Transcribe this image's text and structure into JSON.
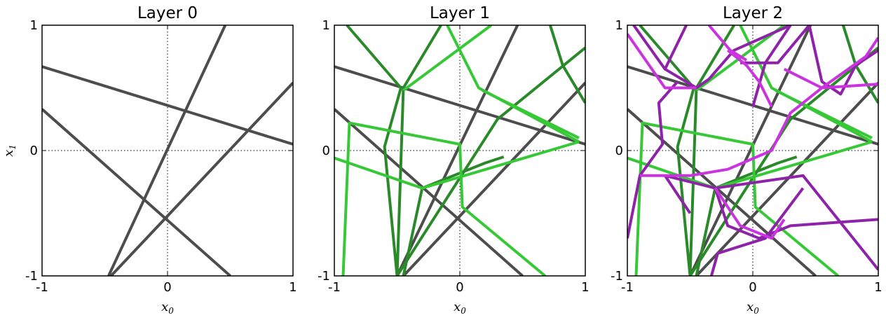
{
  "chart_data": [
    {
      "type": "line",
      "title": "Layer 0",
      "xlabel": "x0",
      "ylabel": "x1",
      "xlim": [
        -1,
        1
      ],
      "ylim": [
        -1,
        1
      ],
      "xticks": [
        "-1",
        "0",
        "1"
      ],
      "yticks": [
        "-1",
        "0",
        "1"
      ],
      "grid": "dotted lines at x0=0 and x1=0",
      "series": [
        {
          "color": "#4d4d4d",
          "points": [
            [
              -1,
              0.67
            ],
            [
              1,
              0.05
            ]
          ]
        },
        {
          "color": "#4d4d4d",
          "points": [
            [
              -1,
              0.33
            ],
            [
              0.5,
              -1
            ]
          ]
        },
        {
          "color": "#4d4d4d",
          "points": [
            [
              -0.47,
              -1
            ],
            [
              0.46,
              1
            ]
          ]
        },
        {
          "color": "#4d4d4d",
          "points": [
            [
              -0.45,
              -1
            ],
            [
              1,
              0.54
            ]
          ]
        }
      ]
    },
    {
      "type": "line",
      "title": "Layer 1",
      "xlabel": "x0",
      "ylabel": "",
      "xlim": [
        -1,
        1
      ],
      "ylim": [
        -1,
        1
      ],
      "xticks": [
        "-1",
        "0",
        "1"
      ],
      "yticks": [
        "-1",
        "0",
        "1"
      ],
      "grid": "dotted lines at x0=0 and x1=0",
      "series": [
        {
          "color": "#4d4d4d",
          "points": [
            [
              -1,
              0.67
            ],
            [
              1,
              0.05
            ]
          ]
        },
        {
          "color": "#4d4d4d",
          "points": [
            [
              -1,
              0.33
            ],
            [
              0.5,
              -1
            ]
          ]
        },
        {
          "color": "#4d4d4d",
          "points": [
            [
              -0.5,
              -1
            ],
            [
              0.46,
              1
            ]
          ]
        },
        {
          "color": "#4d4d4d",
          "points": [
            [
              -0.45,
              -1
            ],
            [
              1,
              0.54
            ]
          ]
        },
        {
          "color": "#2a8a2a",
          "points": [
            [
              -0.9,
              1
            ],
            [
              -0.47,
              0.5
            ],
            [
              -0.6,
              0.03
            ],
            [
              -0.5,
              -1
            ]
          ]
        },
        {
          "color": "#2a8a2a",
          "points": [
            [
              -0.5,
              -1
            ],
            [
              -0.45,
              0.5
            ],
            [
              -0.15,
              1
            ]
          ]
        },
        {
          "color": "#2a8a2a",
          "points": [
            [
              -0.5,
              -1
            ],
            [
              0.3,
              0.25
            ],
            [
              1,
              0.82
            ]
          ]
        },
        {
          "color": "#2a8a2a",
          "points": [
            [
              0.72,
              1
            ],
            [
              0.82,
              0.68
            ],
            [
              1,
              0.38
            ]
          ]
        },
        {
          "color": "#2a8a2a",
          "points": [
            [
              -0.45,
              -1
            ],
            [
              -0.3,
              -0.3
            ],
            [
              0.2,
              -0.1
            ],
            [
              0.35,
              -0.05
            ]
          ]
        },
        {
          "color": "#36c836",
          "points": [
            [
              -0.45,
              0.48
            ],
            [
              0.25,
              1
            ]
          ]
        },
        {
          "color": "#36c836",
          "points": [
            [
              -0.1,
              1
            ],
            [
              0.15,
              0.5
            ],
            [
              0.95,
              0.07
            ]
          ]
        },
        {
          "color": "#36c836",
          "points": [
            [
              -1,
              -0.06
            ],
            [
              -0.3,
              -0.3
            ],
            [
              0.95,
              0.07
            ]
          ]
        },
        {
          "color": "#36c836",
          "points": [
            [
              -0.93,
              -1
            ],
            [
              -0.88,
              0.22
            ],
            [
              0,
              0.05
            ],
            [
              0.02,
              -0.45
            ],
            [
              0.68,
              -1
            ]
          ]
        },
        {
          "color": "#36c836",
          "points": [
            [
              0.18,
              0.48
            ],
            [
              0.95,
              0.1
            ]
          ]
        }
      ]
    },
    {
      "type": "line",
      "title": "Layer 2",
      "xlabel": "x0",
      "ylabel": "",
      "xlim": [
        -1,
        1
      ],
      "ylim": [
        -1,
        1
      ],
      "xticks": [
        "-1",
        "0",
        "1"
      ],
      "yticks": [
        "-1",
        "0",
        "1"
      ],
      "grid": "dotted lines at x0=0 and x1=0",
      "series": [
        {
          "color": "#4d4d4d",
          "points": [
            [
              -1,
              0.67
            ],
            [
              1,
              0.05
            ]
          ]
        },
        {
          "color": "#4d4d4d",
          "points": [
            [
              -1,
              0.33
            ],
            [
              0.5,
              -1
            ]
          ]
        },
        {
          "color": "#4d4d4d",
          "points": [
            [
              -0.5,
              -1
            ],
            [
              0.46,
              1
            ]
          ]
        },
        {
          "color": "#4d4d4d",
          "points": [
            [
              -0.45,
              -1
            ],
            [
              1,
              0.54
            ]
          ]
        },
        {
          "color": "#2a8a2a",
          "points": [
            [
              -0.9,
              1
            ],
            [
              -0.47,
              0.5
            ],
            [
              -0.6,
              0.03
            ],
            [
              -0.5,
              -1
            ]
          ]
        },
        {
          "color": "#2a8a2a",
          "points": [
            [
              -0.5,
              -1
            ],
            [
              -0.45,
              0.5
            ],
            [
              -0.15,
              1
            ]
          ]
        },
        {
          "color": "#2a8a2a",
          "points": [
            [
              -0.5,
              -1
            ],
            [
              0.3,
              0.25
            ],
            [
              1,
              0.82
            ]
          ]
        },
        {
          "color": "#2a8a2a",
          "points": [
            [
              0.72,
              1
            ],
            [
              0.82,
              0.68
            ],
            [
              1,
              0.38
            ]
          ]
        },
        {
          "color": "#2a8a2a",
          "points": [
            [
              -0.45,
              -1
            ],
            [
              -0.3,
              -0.3
            ],
            [
              0.2,
              -0.1
            ],
            [
              0.35,
              -0.05
            ]
          ]
        },
        {
          "color": "#36c836",
          "points": [
            [
              -0.45,
              0.48
            ],
            [
              0.25,
              1
            ]
          ]
        },
        {
          "color": "#36c836",
          "points": [
            [
              -0.1,
              1
            ],
            [
              0.15,
              0.5
            ],
            [
              0.95,
              0.07
            ]
          ]
        },
        {
          "color": "#36c836",
          "points": [
            [
              -1,
              -0.06
            ],
            [
              -0.3,
              -0.3
            ],
            [
              0.95,
              0.07
            ]
          ]
        },
        {
          "color": "#36c836",
          "points": [
            [
              -0.93,
              -1
            ],
            [
              -0.88,
              0.22
            ],
            [
              0,
              0.05
            ],
            [
              0.02,
              -0.45
            ],
            [
              0.68,
              -1
            ]
          ]
        },
        {
          "color": "#36c836",
          "points": [
            [
              0.18,
              0.48
            ],
            [
              0.95,
              0.1
            ]
          ]
        },
        {
          "color": "#8e22a8",
          "points": [
            [
              -0.95,
              1
            ],
            [
              -0.7,
              0.65
            ],
            [
              -0.45,
              0.5
            ],
            [
              -0.35,
              0.57
            ],
            [
              -0.15,
              0.8
            ],
            [
              0.3,
              1
            ]
          ]
        },
        {
          "color": "#8e22a8",
          "points": [
            [
              -0.7,
              0.65
            ],
            [
              -0.53,
              1
            ]
          ]
        },
        {
          "color": "#8e22a8",
          "points": [
            [
              -1,
              -0.7
            ],
            [
              -0.9,
              -0.2
            ],
            [
              -0.72,
              0.05
            ],
            [
              -0.75,
              0.38
            ],
            [
              -0.6,
              0.55
            ]
          ]
        },
        {
          "color": "#8e22a8",
          "points": [
            [
              -0.5,
              -0.5
            ],
            [
              -0.7,
              -0.2
            ],
            [
              -0.3,
              -0.3
            ],
            [
              -0.2,
              -0.6
            ],
            [
              0.05,
              -0.7
            ],
            [
              0.3,
              -0.6
            ],
            [
              1,
              -0.55
            ]
          ]
        },
        {
          "color": "#8e22a8",
          "points": [
            [
              -0.3,
              -0.3
            ],
            [
              0.4,
              -0.2
            ],
            [
              1,
              -0.95
            ]
          ]
        },
        {
          "color": "#8e22a8",
          "points": [
            [
              -0.1,
              0.7
            ],
            [
              0.2,
              0.7
            ],
            [
              0.45,
              1
            ]
          ]
        },
        {
          "color": "#8e22a8",
          "points": [
            [
              0.45,
              1
            ],
            [
              0.55,
              0.55
            ],
            [
              0.7,
              0.45
            ],
            [
              0.82,
              0.68
            ],
            [
              1,
              0.8
            ]
          ]
        },
        {
          "color": "#8e22a8",
          "points": [
            [
              -0.33,
              -1
            ],
            [
              -0.28,
              -0.82
            ],
            [
              0.1,
              -0.7
            ],
            [
              0.4,
              -0.3
            ]
          ]
        },
        {
          "color": "#8e22a8",
          "points": [
            [
              0,
              0.35
            ],
            [
              0.1,
              0.7
            ],
            [
              0.3,
              1
            ]
          ]
        },
        {
          "color": "#cc33e0",
          "points": [
            [
              -1,
              0.93
            ],
            [
              -0.7,
              0.5
            ],
            [
              -0.45,
              0.5
            ]
          ]
        },
        {
          "color": "#cc33e0",
          "points": [
            [
              -0.35,
              1
            ],
            [
              -0.18,
              0.8
            ],
            [
              -0.05,
              0.72
            ]
          ]
        },
        {
          "color": "#cc33e0",
          "points": [
            [
              0.25,
              0.65
            ],
            [
              0.55,
              0.5
            ],
            [
              1,
              0.53
            ]
          ]
        },
        {
          "color": "#cc33e0",
          "points": [
            [
              -0.9,
              -0.2
            ],
            [
              -0.5,
              -0.2
            ],
            [
              -0.2,
              -0.15
            ],
            [
              0.15,
              0.0
            ],
            [
              0.3,
              0.3
            ],
            [
              0.55,
              0.5
            ],
            [
              0.9,
              0.75
            ],
            [
              1,
              0.9
            ]
          ]
        },
        {
          "color": "#cc33e0",
          "points": [
            [
              -0.3,
              -0.3
            ],
            [
              -0.1,
              -0.6
            ],
            [
              0.15,
              -0.7
            ],
            [
              0.25,
              -0.55
            ]
          ]
        },
        {
          "color": "#cc33e0",
          "points": [
            [
              -0.2,
              0.8
            ],
            [
              -0.05,
              0.68
            ],
            [
              0.05,
              0.55
            ],
            [
              0.15,
              0.35
            ]
          ]
        }
      ]
    }
  ]
}
